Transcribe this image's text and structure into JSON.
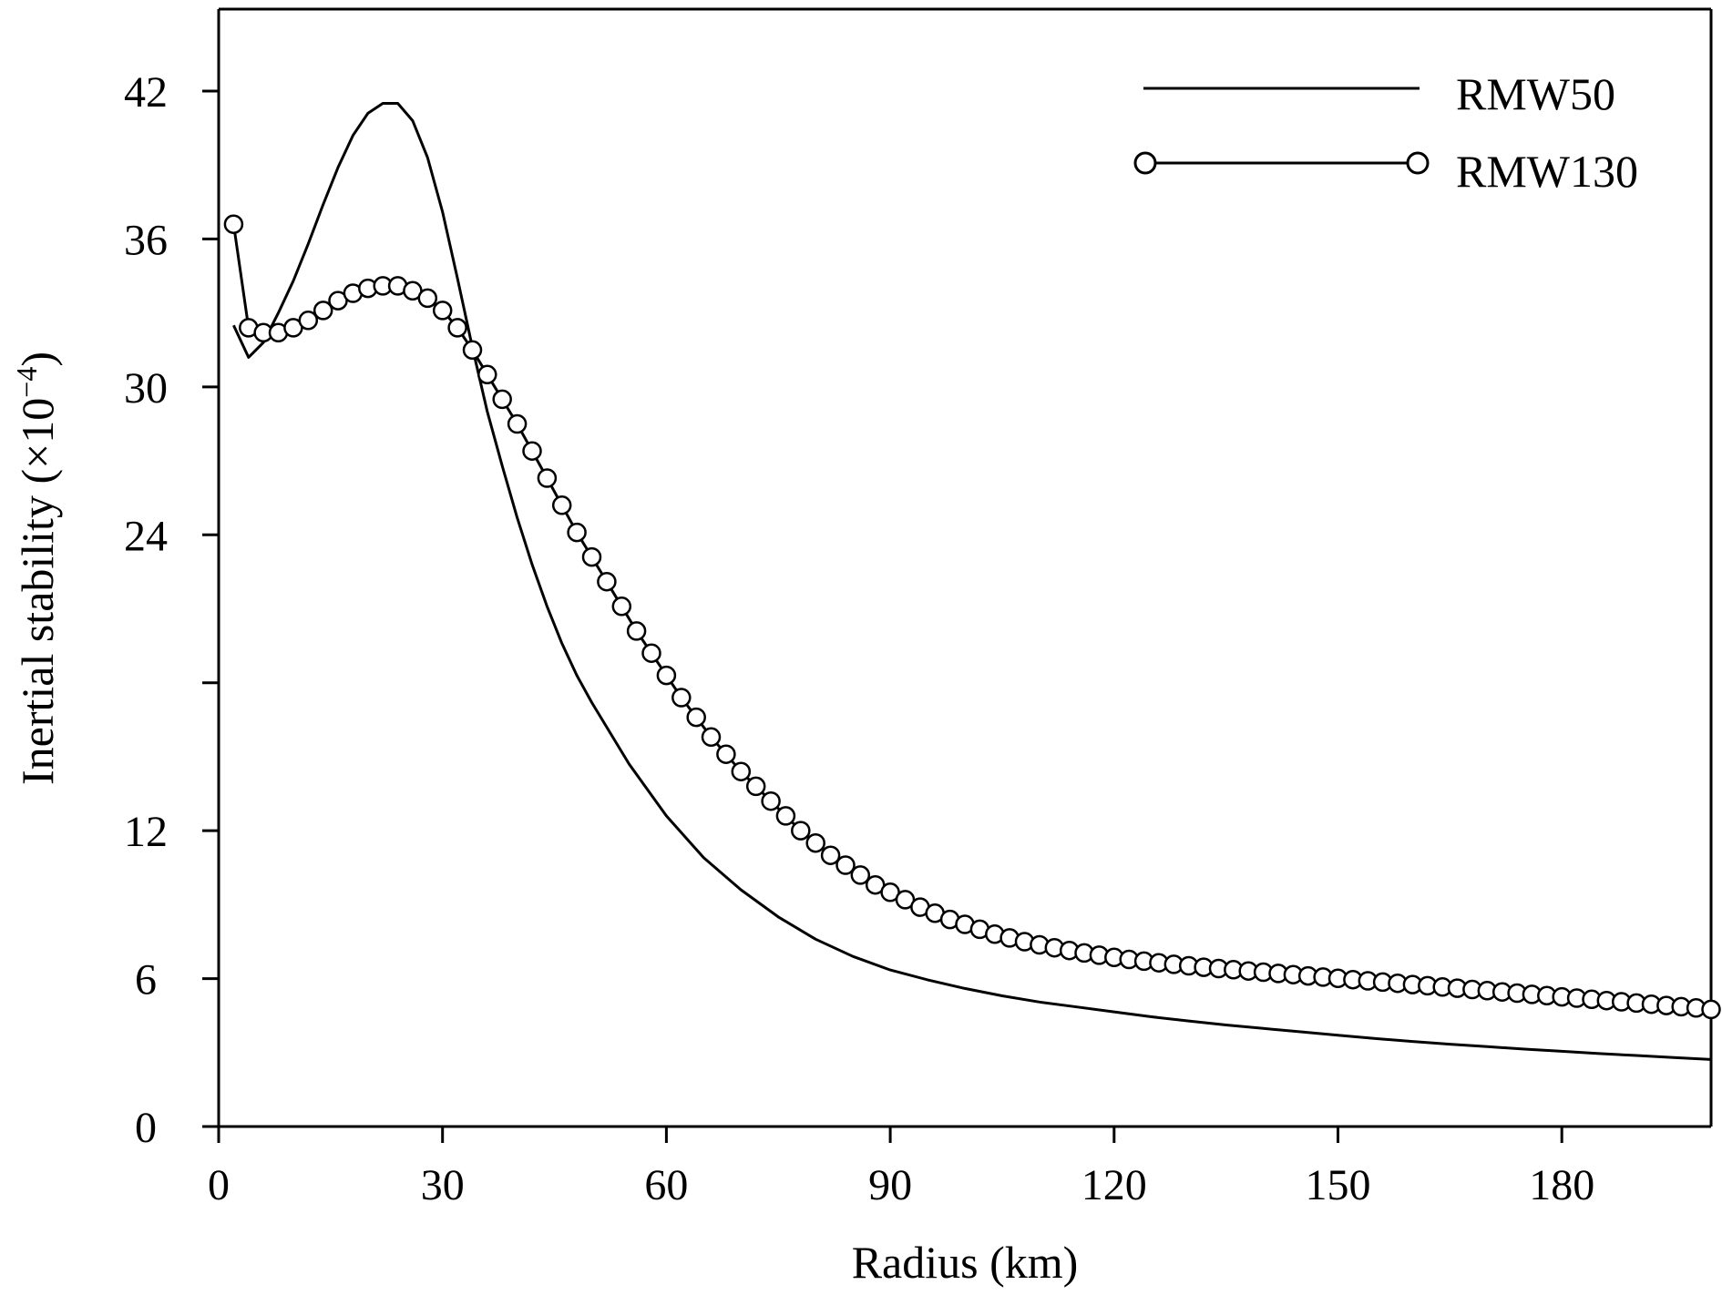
{
  "chart_data": {
    "type": "line",
    "title": "",
    "xlabel": "Radius (km)",
    "ylabel": "Inertial stability (×10",
    "ylabel_exponent": "−4",
    "ylabel_close": ")",
    "xlim": [
      0,
      200
    ],
    "ylim": [
      0,
      42
    ],
    "x_ticks": [
      0,
      30,
      60,
      90,
      120,
      150,
      180
    ],
    "x_tick_labels": [
      "0",
      "30",
      "60",
      "90",
      "120",
      "150",
      "180"
    ],
    "y_ticks": [
      0,
      6,
      12,
      18,
      24,
      30,
      36,
      42
    ],
    "y_tick_labels": [
      "0",
      "6",
      "12",
      "",
      "24",
      "30",
      "36",
      "42"
    ],
    "grid": false,
    "legend_position": "top-right",
    "series": [
      {
        "name": "RMW50",
        "marker": "none",
        "x": [
          2,
          4,
          6,
          8,
          10,
          12,
          14,
          16,
          18,
          20,
          22,
          24,
          26,
          28,
          30,
          32,
          34,
          36,
          38,
          40,
          42,
          44,
          46,
          48,
          50,
          55,
          60,
          65,
          70,
          75,
          80,
          85,
          90,
          95,
          100,
          105,
          110,
          115,
          120,
          125,
          130,
          135,
          140,
          145,
          150,
          155,
          160,
          165,
          170,
          175,
          180,
          185,
          190,
          195,
          200
        ],
        "y": [
          32.5,
          31.2,
          31.8,
          33,
          34.3,
          35.8,
          37.4,
          38.9,
          40.2,
          41.1,
          41.5,
          41.5,
          40.8,
          39.3,
          37.1,
          34.4,
          31.6,
          29,
          26.8,
          24.7,
          22.8,
          21.1,
          19.6,
          18.3,
          17.2,
          14.7,
          12.6,
          10.9,
          9.6,
          8.5,
          7.6,
          6.9,
          6.35,
          5.95,
          5.6,
          5.3,
          5.05,
          4.85,
          4.65,
          4.45,
          4.28,
          4.12,
          3.98,
          3.84,
          3.7,
          3.57,
          3.45,
          3.34,
          3.24,
          3.14,
          3.05,
          2.96,
          2.88,
          2.8,
          2.72
        ]
      },
      {
        "name": "RMW130",
        "marker": "circle",
        "x": [
          2,
          4,
          6,
          8,
          10,
          12,
          14,
          16,
          18,
          20,
          22,
          24,
          26,
          28,
          30,
          32,
          34,
          36,
          38,
          40,
          42,
          44,
          46,
          48,
          50,
          52,
          54,
          56,
          58,
          60,
          62,
          64,
          66,
          68,
          70,
          72,
          74,
          76,
          78,
          80,
          82,
          84,
          86,
          88,
          90,
          92,
          94,
          96,
          98,
          100,
          102,
          104,
          106,
          108,
          110,
          112,
          114,
          116,
          118,
          120,
          122,
          124,
          126,
          128,
          130,
          132,
          134,
          136,
          138,
          140,
          142,
          144,
          146,
          148,
          150,
          152,
          154,
          156,
          158,
          160,
          162,
          164,
          166,
          168,
          170,
          172,
          174,
          176,
          178,
          180,
          182,
          184,
          186,
          188,
          190,
          192,
          194,
          196,
          198,
          200
        ],
        "y": [
          36.6,
          32.4,
          32.2,
          32.2,
          32.4,
          32.7,
          33.1,
          33.5,
          33.8,
          34,
          34.1,
          34.1,
          33.9,
          33.6,
          33.1,
          32.4,
          31.5,
          30.5,
          29.5,
          28.5,
          27.4,
          26.3,
          25.2,
          24.1,
          23.1,
          22.1,
          21.1,
          20.1,
          19.2,
          18.3,
          17.4,
          16.6,
          15.8,
          15.1,
          14.4,
          13.8,
          13.2,
          12.6,
          12,
          11.5,
          11,
          10.6,
          10.2,
          9.8,
          9.5,
          9.2,
          8.9,
          8.65,
          8.4,
          8.2,
          8,
          7.8,
          7.65,
          7.5,
          7.37,
          7.25,
          7.14,
          7.04,
          6.95,
          6.86,
          6.78,
          6.71,
          6.64,
          6.58,
          6.52,
          6.46,
          6.41,
          6.36,
          6.31,
          6.26,
          6.21,
          6.16,
          6.11,
          6.06,
          6.01,
          5.96,
          5.91,
          5.86,
          5.81,
          5.76,
          5.71,
          5.66,
          5.61,
          5.56,
          5.51,
          5.46,
          5.41,
          5.36,
          5.31,
          5.26,
          5.21,
          5.16,
          5.11,
          5.06,
          5.01,
          4.96,
          4.91,
          4.86,
          4.81,
          4.75
        ]
      }
    ]
  }
}
